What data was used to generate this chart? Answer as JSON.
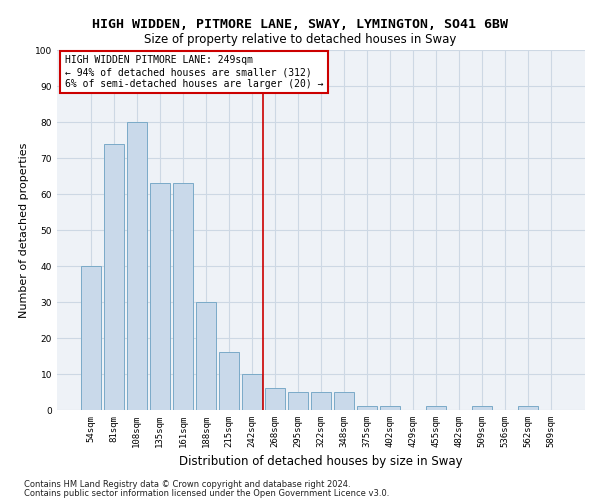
{
  "title": "HIGH WIDDEN, PITMORE LANE, SWAY, LYMINGTON, SO41 6BW",
  "subtitle": "Size of property relative to detached houses in Sway",
  "xlabel": "Distribution of detached houses by size in Sway",
  "ylabel": "Number of detached properties",
  "categories": [
    "54sqm",
    "81sqm",
    "108sqm",
    "135sqm",
    "161sqm",
    "188sqm",
    "215sqm",
    "242sqm",
    "268sqm",
    "295sqm",
    "322sqm",
    "348sqm",
    "375sqm",
    "402sqm",
    "429sqm",
    "455sqm",
    "482sqm",
    "509sqm",
    "536sqm",
    "562sqm",
    "589sqm"
  ],
  "values": [
    40,
    74,
    80,
    63,
    63,
    30,
    16,
    10,
    6,
    5,
    5,
    5,
    1,
    1,
    0,
    1,
    0,
    1,
    0,
    1,
    0
  ],
  "bar_color": "#c9d9ea",
  "bar_edge_color": "#7aaac8",
  "vline_x": 7.5,
  "vline_color": "#cc0000",
  "annotation_box_text": "HIGH WIDDEN PITMORE LANE: 249sqm\n← 94% of detached houses are smaller (312)\n6% of semi-detached houses are larger (20) →",
  "annotation_box_color": "#cc0000",
  "annotation_box_bg": "#ffffff",
  "ylim": [
    0,
    100
  ],
  "yticks": [
    0,
    10,
    20,
    30,
    40,
    50,
    60,
    70,
    80,
    90,
    100
  ],
  "grid_color": "#cdd8e4",
  "bg_color": "#eef2f7",
  "footer_line1": "Contains HM Land Registry data © Crown copyright and database right 2024.",
  "footer_line2": "Contains public sector information licensed under the Open Government Licence v3.0.",
  "title_fontsize": 9.5,
  "subtitle_fontsize": 8.5,
  "axis_label_fontsize": 8,
  "tick_fontsize": 6.5,
  "annotation_fontsize": 7,
  "footer_fontsize": 6
}
